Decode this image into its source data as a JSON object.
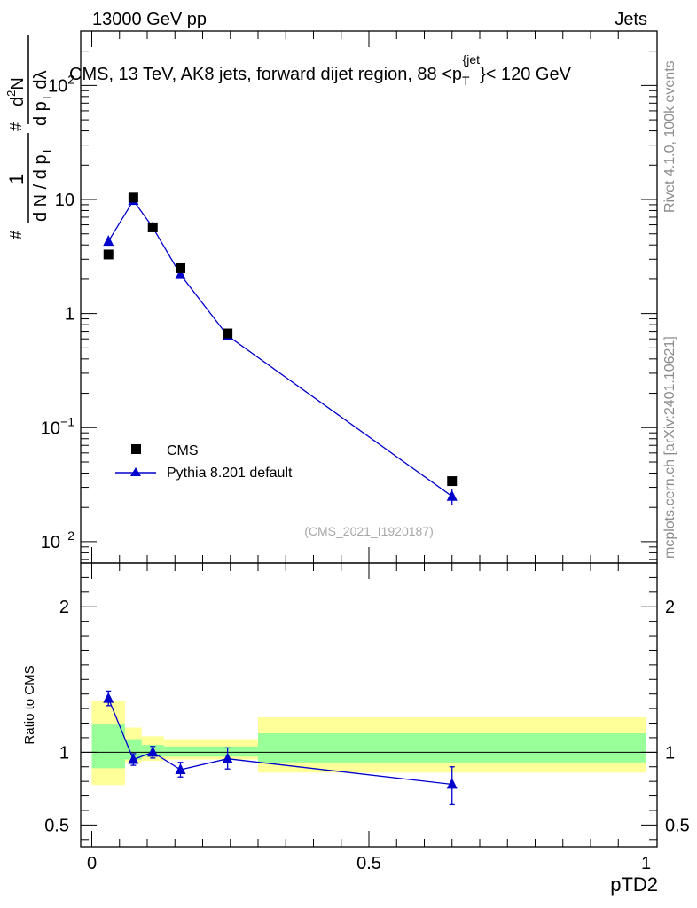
{
  "header": {
    "left": "13000 GeV pp",
    "right": "Jets"
  },
  "side_labels": {
    "rivet": "Rivet 4.1.0,  100k events",
    "mcplots": "mcplots.cern.ch [arXiv:2401.10621]"
  },
  "colors": {
    "data": "#000000",
    "mc": "#0000cc",
    "band_inner": "#99ff99",
    "band_outer": "#ffff99"
  },
  "chart_data": [
    {
      "type": "scatter",
      "title": "CMS, 13 TeV, AK8 jets, forward dijet region, 88 <p_T^{jet}< 120 GeV",
      "title_parts": {
        "pre": "CMS, 13 TeV, AK8 jets, forward dijet region, 88 <p",
        "sub": "T",
        "sup": "{jet",
        "post": "}< 120 GeV"
      },
      "ylabel": "1/dN/dp_T  d²N/dp_T dλ",
      "ylabel_parts": {
        "one": "1",
        "den_pre": "d N / d p",
        "num_pre": "d",
        "num_post": "N",
        "two": "2",
        "den2": "d p",
        "den2_post": " dλ",
        "sub": "T",
        "hash": "#"
      },
      "yscale": "log",
      "ylim": [
        0.0065,
        300
      ],
      "xlim": [
        -0.02,
        1.02
      ],
      "ytick_labels": [
        {
          "value": 0.01,
          "base": "10",
          "exp": "−2"
        },
        {
          "value": 0.1,
          "base": "10",
          "exp": "−1"
        },
        {
          "value": 1,
          "text": "1"
        },
        {
          "value": 10,
          "text": "10"
        },
        {
          "value": 100,
          "base": "10",
          "exp": "2"
        }
      ],
      "watermark": "(CMS_2021_I1920187)",
      "legend": {
        "position": "bottom-left",
        "entries": [
          "CMS",
          "Pythia 8.201 default"
        ]
      },
      "series": [
        {
          "name": "CMS",
          "marker": "square",
          "points": [
            {
              "x": 0.03,
              "y": 3.3
            },
            {
              "x": 0.075,
              "y": 10.4
            },
            {
              "x": 0.11,
              "y": 5.7
            },
            {
              "x": 0.16,
              "y": 2.5
            },
            {
              "x": 0.245,
              "y": 0.67
            },
            {
              "x": 0.65,
              "y": 0.034
            }
          ]
        },
        {
          "name": "Pythia 8.201 default",
          "marker": "triangle",
          "line": true,
          "points": [
            {
              "x": 0.03,
              "y": 4.3,
              "ylo": 4.05,
              "yhi": 4.55
            },
            {
              "x": 0.075,
              "y": 9.8,
              "ylo": 9.5,
              "yhi": 10.1
            },
            {
              "x": 0.11,
              "y": 5.7,
              "ylo": 5.45,
              "yhi": 5.95
            },
            {
              "x": 0.16,
              "y": 2.2,
              "ylo": 2.08,
              "yhi": 2.32
            },
            {
              "x": 0.245,
              "y": 0.64,
              "ylo": 0.595,
              "yhi": 0.685
            },
            {
              "x": 0.65,
              "y": 0.025,
              "ylo": 0.021,
              "yhi": 0.029
            }
          ]
        }
      ]
    },
    {
      "type": "scatter",
      "ylabel": "Ratio to CMS",
      "xlabel": "pTD2",
      "ylim": [
        0.35,
        2.3
      ],
      "xlim": [
        -0.02,
        1.02
      ],
      "yticks": [
        0.5,
        1,
        2
      ],
      "ytick_labels": [
        "0.5",
        "1",
        "2"
      ],
      "xticks": [
        0,
        0.5,
        1
      ],
      "xtick_labels": [
        "0",
        "0.5",
        "1"
      ],
      "reference_line": 1,
      "bands": [
        {
          "x0": 0.0,
          "x1": 0.06,
          "outer": [
            0.775,
            1.35
          ],
          "inner": [
            0.89,
            1.19
          ]
        },
        {
          "x0": 0.06,
          "x1": 0.09,
          "outer": [
            0.93,
            1.17
          ],
          "inner": [
            0.95,
            1.09
          ]
        },
        {
          "x0": 0.09,
          "x1": 0.13,
          "outer": [
            0.94,
            1.11
          ],
          "inner": [
            0.97,
            1.05
          ]
        },
        {
          "x0": 0.13,
          "x1": 0.3,
          "outer": [
            0.95,
            1.09
          ],
          "inner": [
            0.97,
            1.04
          ]
        },
        {
          "x0": 0.3,
          "x1": 1.0,
          "outer": [
            0.86,
            1.24
          ],
          "inner": [
            0.93,
            1.13
          ]
        }
      ],
      "series": [
        {
          "name": "Pythia 8.201 default / CMS",
          "marker": "triangle",
          "line": true,
          "points": [
            {
              "x": 0.03,
              "y": 1.37,
              "ylo": 1.32,
              "yhi": 1.42
            },
            {
              "x": 0.075,
              "y": 0.95,
              "ylo": 0.91,
              "yhi": 0.99
            },
            {
              "x": 0.11,
              "y": 1.0,
              "ylo": 0.96,
              "yhi": 1.04
            },
            {
              "x": 0.16,
              "y": 0.88,
              "ylo": 0.83,
              "yhi": 0.93
            },
            {
              "x": 0.245,
              "y": 0.955,
              "ylo": 0.885,
              "yhi": 1.03
            },
            {
              "x": 0.65,
              "y": 0.78,
              "ylo": 0.64,
              "yhi": 0.9
            }
          ]
        }
      ]
    }
  ]
}
